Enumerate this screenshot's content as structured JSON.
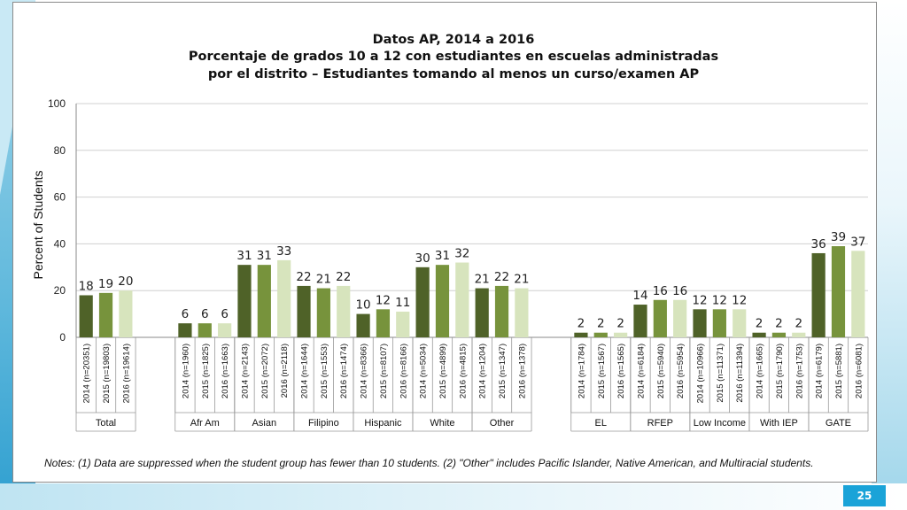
{
  "slide_number": "25",
  "notes": "Notes: (1) Data are suppressed when the student group has fewer than 10 students. (2) \"Other\" includes Pacific Islander, Native American, and Multiracial students.",
  "colors": {
    "y2014": "#4f6228",
    "y2015": "#77933c",
    "y2016": "#d7e4bd",
    "accent": "#1aa3d8"
  },
  "chart_data": {
    "type": "bar",
    "title": [
      "Datos AP, 2014 a 2016",
      "Porcentaje de grados 10 a 12 con estudiantes en escuelas administradas",
      "por el distrito – Estudiantes tomando al menos un curso/examen AP"
    ],
    "ylabel": "Percent of Students",
    "ylim": [
      0,
      100
    ],
    "yticks": [
      0,
      20,
      40,
      60,
      80,
      100
    ],
    "grid": true,
    "groups": [
      {
        "name": "Total",
        "bars": [
          {
            "label": "2014 (n=20351)",
            "value": 18
          },
          {
            "label": "2015 (n=19803)",
            "value": 19
          },
          {
            "label": "2016 (n=19614)",
            "value": 20
          }
        ]
      },
      {
        "name": "",
        "bars": []
      },
      {
        "name": "Afr Am",
        "bars": [
          {
            "label": "2014 (n=1960)",
            "value": 6
          },
          {
            "label": "2015 (n=1825)",
            "value": 6
          },
          {
            "label": "2016 (n=1663)",
            "value": 6
          }
        ]
      },
      {
        "name": "Asian",
        "bars": [
          {
            "label": "2014 (n=2143)",
            "value": 31
          },
          {
            "label": "2015 (n=2072)",
            "value": 31
          },
          {
            "label": "2016 (n=2118)",
            "value": 33
          }
        ]
      },
      {
        "name": "Filipino",
        "bars": [
          {
            "label": "2014 (n=1644)",
            "value": 22
          },
          {
            "label": "2015 (n=1553)",
            "value": 21
          },
          {
            "label": "2016 (n=1474)",
            "value": 22
          }
        ]
      },
      {
        "name": "Hispanic",
        "bars": [
          {
            "label": "2014 (n=8366)",
            "value": 10
          },
          {
            "label": "2015 (n=8107)",
            "value": 12
          },
          {
            "label": "2016 (n=8166)",
            "value": 11
          }
        ]
      },
      {
        "name": "White",
        "bars": [
          {
            "label": "2014 (n=5034)",
            "value": 30
          },
          {
            "label": "2015 (n=4899)",
            "value": 31
          },
          {
            "label": "2016 (n=4815)",
            "value": 32
          }
        ]
      },
      {
        "name": "Other",
        "bars": [
          {
            "label": "2014 (n=1204)",
            "value": 21
          },
          {
            "label": "2015 (n=1347)",
            "value": 22
          },
          {
            "label": "2016 (n=1378)",
            "value": 21
          }
        ]
      },
      {
        "name": "",
        "bars": []
      },
      {
        "name": "EL",
        "bars": [
          {
            "label": "2014 (n=1784)",
            "value": 2
          },
          {
            "label": "2015 (n=1567)",
            "value": 2
          },
          {
            "label": "2016 (n=1565)",
            "value": 2
          }
        ]
      },
      {
        "name": "RFEP",
        "bars": [
          {
            "label": "2014 (n=6184)",
            "value": 14
          },
          {
            "label": "2015 (n=5940)",
            "value": 16
          },
          {
            "label": "2016 (n=5954)",
            "value": 16
          }
        ]
      },
      {
        "name": "Low Income",
        "bars": [
          {
            "label": "2014 (n=10966)",
            "value": 12
          },
          {
            "label": "2015 (n=11371)",
            "value": 12
          },
          {
            "label": "2016 (n=11394)",
            "value": 12
          }
        ]
      },
      {
        "name": "With IEP",
        "bars": [
          {
            "label": "2014 (n=1665)",
            "value": 2
          },
          {
            "label": "2015 (n=1790)",
            "value": 2
          },
          {
            "label": "2016 (n=1753)",
            "value": 2
          }
        ]
      },
      {
        "name": "GATE",
        "bars": [
          {
            "label": "2014 (n=6179)",
            "value": 36
          },
          {
            "label": "2015 (n=5881)",
            "value": 39
          },
          {
            "label": "2016 (n=6081)",
            "value": 37
          }
        ]
      }
    ]
  }
}
